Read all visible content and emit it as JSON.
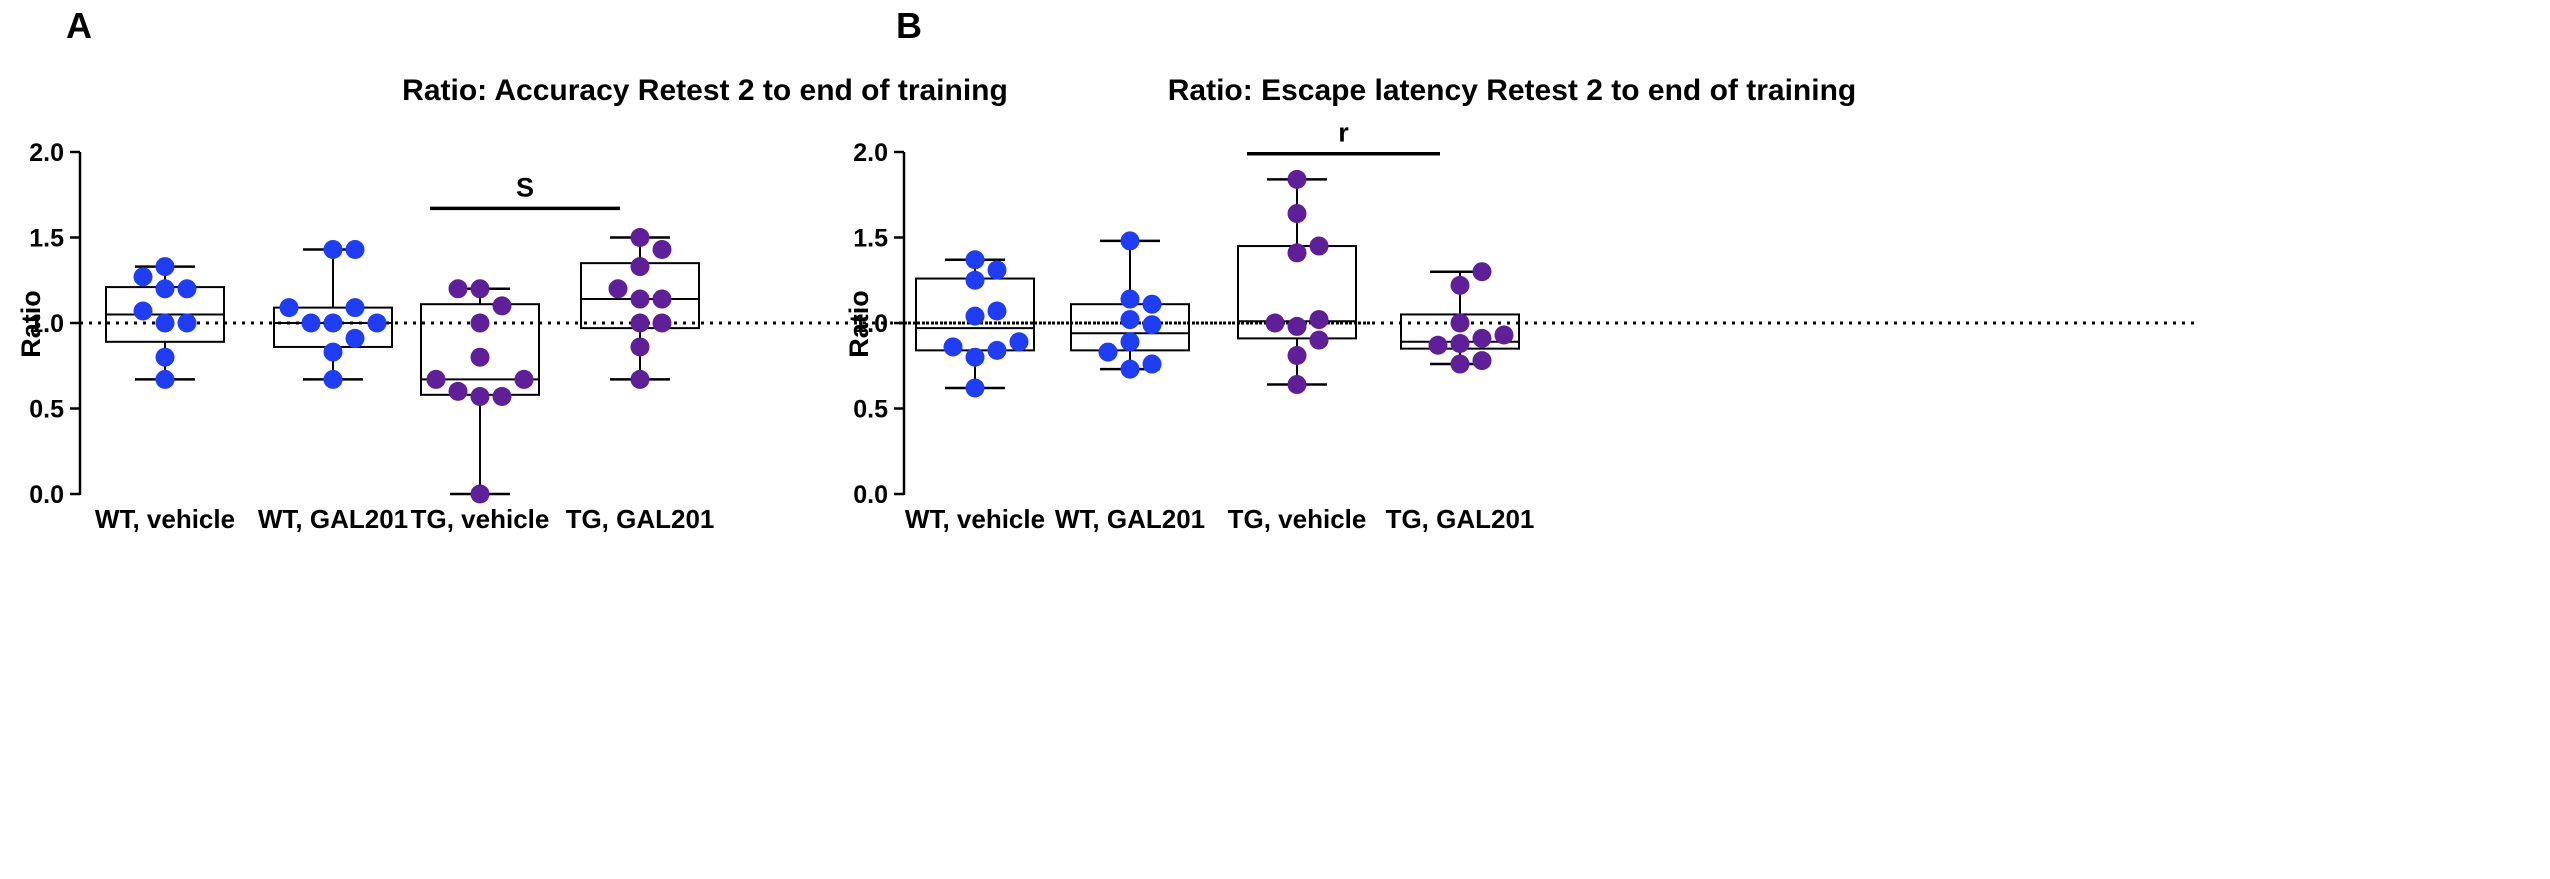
{
  "colors": {
    "wt": "#1f3df5",
    "tg": "#5e1f98",
    "ink": "#000000"
  },
  "chart_data": [
    {
      "type": "box",
      "panel": "A",
      "title": "Ratio: Accuracy Retest 2 to end of training",
      "xlabel": "",
      "ylabel": "Ratio",
      "ylim": [
        0,
        2
      ],
      "yticks": [
        "0.0",
        "0.5",
        "1.0",
        "1.5",
        "2.0"
      ],
      "reference_line": 1.0,
      "categories": [
        "WT, vehicle",
        "WT, GAL201",
        "TG, vehicle",
        "TG, GAL201"
      ],
      "boxes": [
        {
          "min": 0.67,
          "q1": 0.89,
          "median": 1.05,
          "q3": 1.21,
          "max": 1.33,
          "color": "wt",
          "points": [
            0.67,
            0.8,
            1.0,
            1.0,
            1.07,
            1.2,
            1.2,
            1.27,
            1.33
          ]
        },
        {
          "min": 0.67,
          "q1": 0.86,
          "median": 1.0,
          "q3": 1.09,
          "max": 1.43,
          "color": "wt",
          "points": [
            0.67,
            0.83,
            0.91,
            1.0,
            1.0,
            1.0,
            1.09,
            1.09,
            1.43,
            1.43
          ]
        },
        {
          "min": 0.0,
          "q1": 0.58,
          "median": 0.67,
          "q3": 1.11,
          "max": 1.2,
          "color": "tg",
          "points": [
            0.0,
            0.57,
            0.57,
            0.6,
            0.67,
            0.67,
            0.8,
            1.0,
            1.1,
            1.2,
            1.2
          ]
        },
        {
          "min": 0.67,
          "q1": 0.97,
          "median": 1.14,
          "q3": 1.35,
          "max": 1.5,
          "color": "tg",
          "points": [
            0.67,
            0.86,
            1.0,
            1.0,
            1.14,
            1.14,
            1.2,
            1.33,
            1.43,
            1.5
          ]
        }
      ],
      "significance": [
        {
          "from": 2,
          "to": 3,
          "y": 1.67,
          "label": "S"
        }
      ]
    },
    {
      "type": "box",
      "panel": "B",
      "title": "Ratio: Escape latency Retest 2 to end of training",
      "xlabel": "",
      "ylabel": "Ratio",
      "ylim": [
        0,
        2
      ],
      "yticks": [
        "0.0",
        "0.5",
        "1.0",
        "1.5",
        "2.0"
      ],
      "reference_line": 1.0,
      "categories": [
        "WT, vehicle",
        "WT, GAL201",
        "TG, vehicle",
        "TG, GAL201"
      ],
      "boxes": [
        {
          "min": 0.62,
          "q1": 0.84,
          "median": 0.97,
          "q3": 1.26,
          "max": 1.37,
          "color": "wt",
          "points": [
            0.62,
            0.8,
            0.84,
            0.86,
            0.89,
            1.04,
            1.07,
            1.25,
            1.31,
            1.37
          ]
        },
        {
          "min": 0.73,
          "q1": 0.84,
          "median": 0.94,
          "q3": 1.11,
          "max": 1.48,
          "color": "wt",
          "points": [
            0.73,
            0.76,
            0.83,
            0.89,
            0.99,
            1.02,
            1.11,
            1.14,
            1.48
          ]
        },
        {
          "min": 0.64,
          "q1": 0.91,
          "median": 1.01,
          "q3": 1.45,
          "max": 1.84,
          "color": "tg",
          "points": [
            0.64,
            0.81,
            0.9,
            0.98,
            1.0,
            1.02,
            1.41,
            1.45,
            1.64,
            1.84
          ]
        },
        {
          "min": 0.76,
          "q1": 0.85,
          "median": 0.89,
          "q3": 1.05,
          "max": 1.3,
          "color": "tg",
          "points": [
            0.76,
            0.78,
            0.87,
            0.88,
            0.91,
            0.93,
            1.0,
            1.22,
            1.3
          ]
        }
      ],
      "significance": [
        {
          "from": 2,
          "to": 3,
          "y": 1.99,
          "label": "r"
        }
      ]
    }
  ]
}
